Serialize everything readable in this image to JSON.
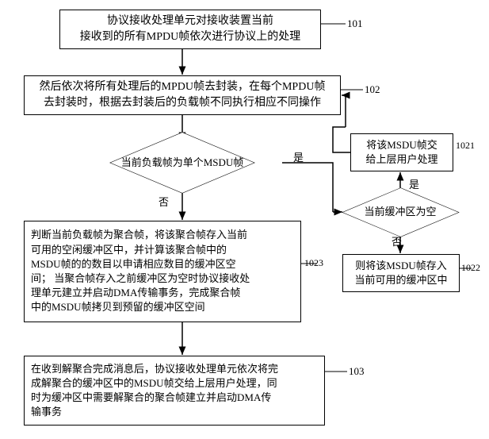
{
  "flowchart": {
    "type": "flowchart",
    "font_family": "SimSun",
    "background_color": "#ffffff",
    "border_color": "#000000",
    "line_width": 1.5,
    "arrow_head_size": 6,
    "nodes": {
      "step101": {
        "text": "协议接收处理单元对接收装置当前\n接收到的所有MPDU帧依次进行协议上的处理",
        "label": "101",
        "fontsize": 14
      },
      "step102": {
        "text": "然后依次将所有处理后的MPDU帧去封装，在每个MPDU帧\n去封装时，根据去封装后的负载帧不同执行相应不同操作",
        "label": "102",
        "fontsize": 14
      },
      "decision1": {
        "text": "当前负载帧为单个MSDU帧",
        "fontsize": 13
      },
      "decision2": {
        "text": "当前缓冲区为空",
        "fontsize": 13
      },
      "step1021": {
        "text": "将该MSDU帧交\n给上层用户处理",
        "label": "1021",
        "fontsize": 13
      },
      "step1022": {
        "text": "则将该MSDU帧存入\n当前可用的缓冲区中",
        "label": "1022",
        "fontsize": 13
      },
      "step1023": {
        "text": "判断当前负载帧为聚合帧，将该聚合帧存入当前\n可用的空闲缓冲区中，并计算该聚合帧中的\nMSDU帧的的数目以申请相应数目的缓冲区空\n间； 当聚合帧存入之前缓冲区为空时协议接收处\n理单元建立并启动DMA传输事务，完成聚合帧\n中的MSDU帧拷贝到预留的缓冲区空间",
        "label": "1023",
        "fontsize": 13
      },
      "step103": {
        "text": "在收到解聚合完成消息后，协议接收处理单元依次将完\n成解聚合的缓冲区中的MSDU帧交给上层用户处理，同\n时为缓冲区中需要解聚合的聚合帧建立并启动DMA传\n输事务",
        "label": "103",
        "fontsize": 13
      }
    },
    "edge_labels": {
      "yes1": "是",
      "no1": "否",
      "yes2": "是",
      "no2": "否"
    }
  }
}
